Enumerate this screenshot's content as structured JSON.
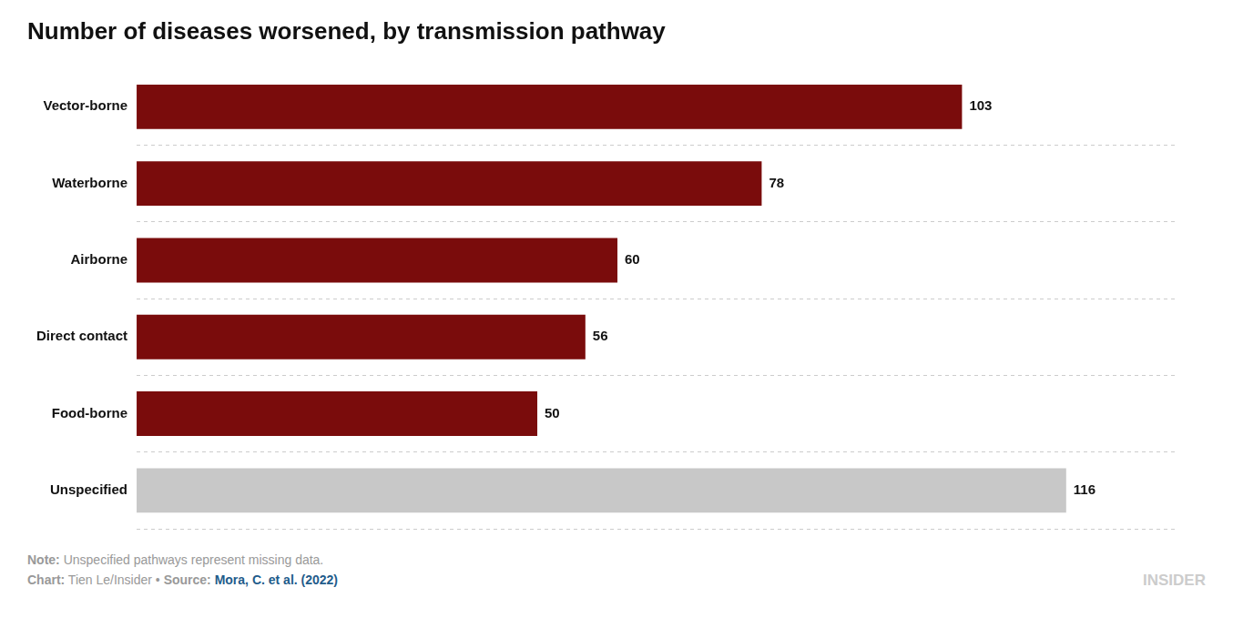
{
  "chart_data": {
    "type": "bar",
    "orientation": "horizontal",
    "title": "Number of diseases worsened, by transmission pathway",
    "categories": [
      "Vector-borne",
      "Waterborne",
      "Airborne",
      "Direct contact",
      "Food-borne",
      "Unspecified"
    ],
    "values": [
      103,
      78,
      60,
      56,
      50,
      116
    ],
    "colors": [
      "#7a0c0c",
      "#7a0c0c",
      "#7a0c0c",
      "#7a0c0c",
      "#7a0c0c",
      "#c8c8c8"
    ],
    "xlim": [
      0,
      130
    ],
    "tick_labels": "y",
    "data_labels": true,
    "grid": true,
    "annotations": [
      [
        {
          "text": "Note:"
        },
        {
          "text": " Unspecified pathways represent missing data."
        }
      ],
      [
        {
          "text": "Chart:"
        },
        {
          "text": " Tien Le/Insider • "
        },
        {
          "text": "Source:"
        },
        {
          "text": " Mora, C. et al. (2022)",
          "color": "#1f5c8b"
        }
      ],
      [
        {
          "text": "INSIDER"
        }
      ]
    ]
  }
}
